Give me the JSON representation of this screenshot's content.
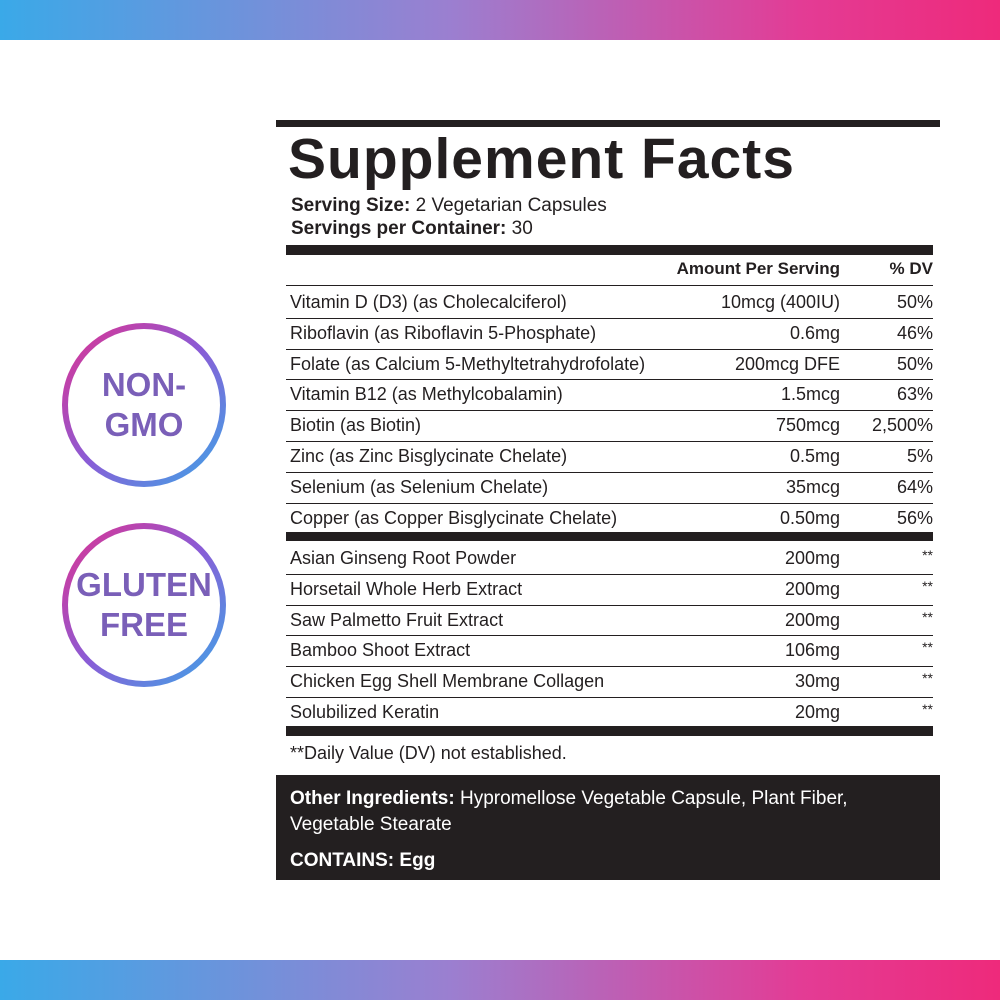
{
  "badges": [
    [
      "NON-",
      "GMO"
    ],
    [
      "GLUTEN",
      "FREE"
    ]
  ],
  "label": {
    "title": "Supplement Facts",
    "serving_size": {
      "label": "Serving Size:",
      "value": "2 Vegetarian Capsules"
    },
    "servings_per_container": {
      "label": "Servings per Container:",
      "value": "30"
    },
    "columns": {
      "amount": "Amount Per Serving",
      "dv": "% DV"
    },
    "vitamins": [
      [
        "Vitamin D (D3) (as Cholecalciferol)",
        "10mcg (400IU)",
        "50%"
      ],
      [
        "Riboflavin (as Riboflavin 5-Phosphate)",
        "0.6mg",
        "46%"
      ],
      [
        "Folate (as Calcium 5-Methyltetrahydrofolate)",
        "200mcg DFE",
        "50%"
      ],
      [
        "Vitamin B12 (as Methylcobalamin)",
        "1.5mcg",
        "63%"
      ],
      [
        "Biotin (as Biotin)",
        "750mcg",
        "2,500%"
      ],
      [
        "Zinc (as Zinc Bisglycinate Chelate)",
        "0.5mg",
        "5%"
      ],
      [
        "Selenium (as Selenium Chelate)",
        "35mcg",
        "64%"
      ],
      [
        "Copper (as Copper Bisglycinate Chelate)",
        "0.50mg",
        "56%"
      ]
    ],
    "others": [
      [
        "Asian Ginseng Root Powder",
        "200mg",
        "**"
      ],
      [
        "Horsetail Whole Herb Extract",
        "200mg",
        "**"
      ],
      [
        "Saw Palmetto Fruit Extract",
        "200mg",
        "**"
      ],
      [
        "Bamboo Shoot Extract",
        "106mg",
        "**"
      ],
      [
        "Chicken Egg Shell Membrane Collagen",
        "30mg",
        "**"
      ],
      [
        "Solubilized Keratin",
        "20mg",
        "**"
      ]
    ],
    "footnote": "**Daily Value (DV) not established.",
    "other_ingredients": {
      "label": "Other Ingredients:",
      "value": "Hypromellose Vegetable Capsule, Plant Fiber, Vegetable Stearate"
    },
    "contains": {
      "label": "CONTAINS:",
      "value": "Egg"
    }
  }
}
